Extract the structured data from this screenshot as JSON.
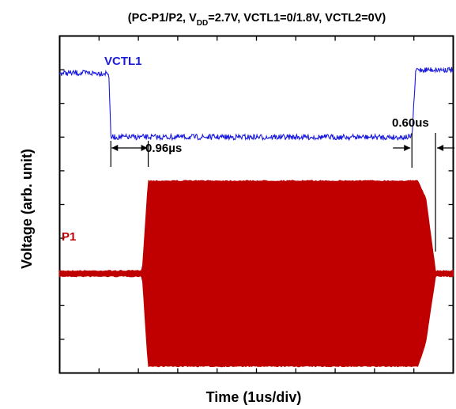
{
  "chart_data": {
    "type": "line",
    "title": {
      "prefix": "(PC-P1/P2, V",
      "subscript": "DD",
      "suffix": "=2.7V, VCTL1=0/1.8V, VCTL2=0V)"
    },
    "xlabel": "Time  (1us/div)",
    "ylabel": "Voltage  (arb. unit)",
    "x_unit": "us",
    "x_range": [
      0,
      10
    ],
    "y_range": [
      0,
      10
    ],
    "grid": false,
    "ticks": {
      "x_count": 9,
      "y_count": 9,
      "direction": "inward",
      "labels_shown": false
    },
    "series": [
      {
        "name": "VCTL1",
        "color": "#1a1adf",
        "kind": "step",
        "points": [
          [
            0,
            8.9
          ],
          [
            1.25,
            8.9
          ],
          [
            1.3,
            7.0
          ],
          [
            8.95,
            7.0
          ],
          [
            9.05,
            9.0
          ],
          [
            10,
            9.0
          ]
        ]
      },
      {
        "name": "P1",
        "color": "#c00000",
        "kind": "rf-envelope",
        "baseline": 2.95,
        "idle_amplitude": 0.08,
        "envelope_upper": [
          [
            0,
            3.03
          ],
          [
            2.1,
            3.03
          ],
          [
            2.25,
            5.7
          ],
          [
            9.1,
            5.7
          ],
          [
            9.3,
            5.2
          ],
          [
            9.55,
            3.03
          ],
          [
            10,
            3.03
          ]
        ],
        "envelope_lower": [
          [
            0,
            2.87
          ],
          [
            2.1,
            2.87
          ],
          [
            2.25,
            0.2
          ],
          [
            9.1,
            0.2
          ],
          [
            9.3,
            0.9
          ],
          [
            9.55,
            2.87
          ],
          [
            10,
            2.87
          ]
        ]
      }
    ],
    "annotations": [
      {
        "label": "0.96µs",
        "marker_x": [
          1.3,
          2.25
        ]
      },
      {
        "label": "0.60us",
        "marker_x": [
          8.95,
          9.55
        ]
      }
    ]
  }
}
